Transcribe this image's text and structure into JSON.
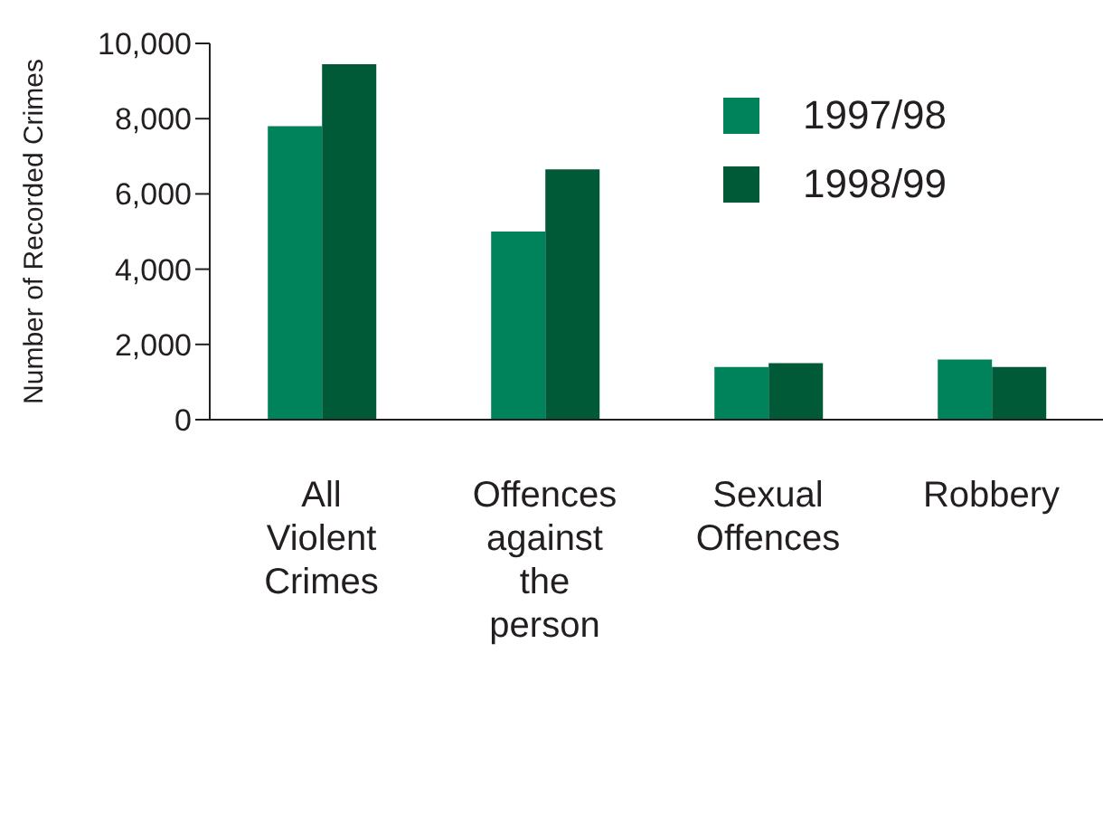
{
  "chart_data": {
    "type": "bar",
    "ylabel": "Number of Recorded Crimes",
    "categories": [
      "All Violent Crimes",
      "Offences against the person",
      "Sexual Offences",
      "Robbery"
    ],
    "series": [
      {
        "name": "1997/98",
        "color": "#00835a",
        "values": [
          7800,
          5000,
          1400,
          1600
        ]
      },
      {
        "name": "1998/99",
        "color": "#005a38",
        "values": [
          9450,
          6650,
          1500,
          1400
        ]
      }
    ],
    "ylim": [
      0,
      10000
    ],
    "yticks": [
      0,
      {
        "value": 2000,
        "label": "2,000"
      },
      {
        "value": 4000,
        "label": "4,000"
      },
      {
        "value": 6000,
        "label": "6,000"
      },
      {
        "value": 8000,
        "label": "8,000"
      },
      {
        "value": 10000,
        "label": "10,000"
      }
    ],
    "grid": false,
    "legend": "top right"
  }
}
